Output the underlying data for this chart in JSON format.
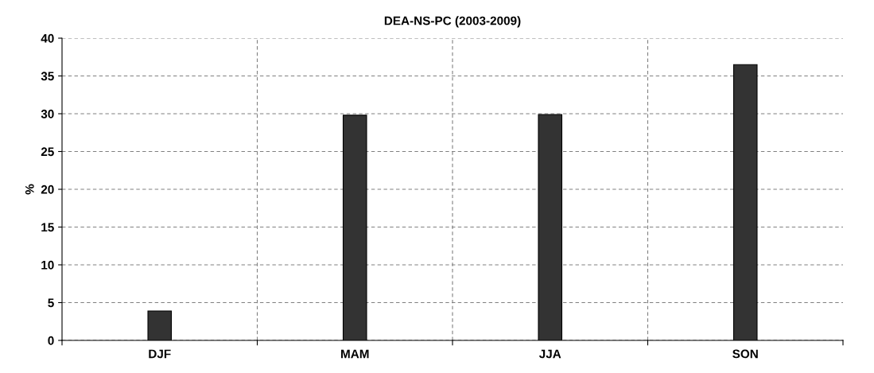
{
  "chart_data": {
    "type": "bar",
    "title": "DEA-NS-PC (2003-2009)",
    "ylabel": "%",
    "categories": [
      "DJF",
      "MAM",
      "JJA",
      "SON"
    ],
    "values": [
      3.9,
      29.8,
      29.9,
      36.5
    ],
    "color": "#333333",
    "ylim": [
      0,
      40
    ],
    "yticks": [
      0,
      5,
      10,
      15,
      20,
      25,
      30,
      35,
      40
    ],
    "grid": true
  }
}
